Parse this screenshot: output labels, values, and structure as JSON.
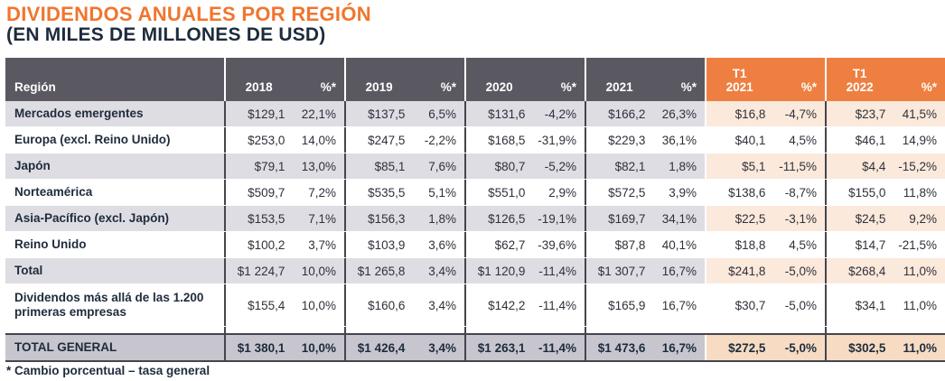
{
  "title": "DIVIDENDOS ANUALES POR REGIÓN",
  "subtitle": "(EN MILES DE MILLONES DE USD)",
  "footnote": "* Cambio porcentual – tasa general",
  "colors": {
    "accent_orange": "#EE7F41",
    "title_orange": "#F1752E",
    "header_gray": "#5A5962",
    "navy_text": "#1E2B3C",
    "row_shade_gray": "#DEDDE3",
    "row_shade_peach": "#FBE9DB",
    "total_row_gray": "#C7C6CE",
    "total_row_peach": "#F7DCC3",
    "dark_border": "#46454D"
  },
  "table": {
    "region_header": "Región",
    "pct_header": "%*",
    "groups": [
      {
        "label": "2018"
      },
      {
        "label": "2019"
      },
      {
        "label": "2020"
      },
      {
        "label": "2021"
      },
      {
        "label": "T1 2021",
        "line1": "T1",
        "line2": "2021",
        "quarter": true
      },
      {
        "label": "T1 2022",
        "line1": "T1",
        "line2": "2022",
        "quarter": true
      }
    ],
    "rows": [
      {
        "region": "Mercados emergentes",
        "shaded": true,
        "values": [
          "$129,1",
          "22,1%",
          "$137,5",
          "6,5%",
          "$131,6",
          "-4,2%",
          "$166,2",
          "26,3%",
          "$16,8",
          "-4,7%",
          "$23,7",
          "41,5%"
        ]
      },
      {
        "region": "Europa (excl. Reino Unido)",
        "shaded": false,
        "values": [
          "$253,0",
          "14,0%",
          "$247,5",
          "-2,2%",
          "$168,5",
          "-31,9%",
          "$229,3",
          "36,1%",
          "$40,1",
          "4,5%",
          "$46,1",
          "14,9%"
        ]
      },
      {
        "region": "Japón",
        "shaded": true,
        "values": [
          "$79,1",
          "13,0%",
          "$85,1",
          "7,6%",
          "$80,7",
          "-5,2%",
          "$82,1",
          "1,8%",
          "$5,1",
          "-11,5%",
          "$4,4",
          "-15,2%"
        ]
      },
      {
        "region": "Norteamérica",
        "shaded": false,
        "values": [
          "$509,7",
          "7,2%",
          "$535,5",
          "5,1%",
          "$551,0",
          "2,9%",
          "$572,5",
          "3,9%",
          "$138,6",
          "-8,7%",
          "$155,0",
          "11,8%"
        ]
      },
      {
        "region": "Asia-Pacífico (excl. Japón)",
        "shaded": true,
        "values": [
          "$153,5",
          "7,1%",
          "$156,3",
          "1,8%",
          "$126,5",
          "-19,1%",
          "$169,7",
          "34,1%",
          "$22,5",
          "-3,1%",
          "$24,5",
          "9,2%"
        ]
      },
      {
        "region": "Reino Unido",
        "shaded": false,
        "values": [
          "$100,2",
          "3,7%",
          "$103,9",
          "3,6%",
          "$62,7",
          "-39,6%",
          "$87,8",
          "40,1%",
          "$18,8",
          "4,5%",
          "$14,7",
          "-21,5%"
        ]
      },
      {
        "region": "Total",
        "shaded": true,
        "values": [
          "$1 224,7",
          "10,0%",
          "$1 265,8",
          "3,4%",
          "$1 120,9",
          "-11,4%",
          "$1 307,7",
          "16,7%",
          "$241,8",
          "-5,0%",
          "$268,4",
          "11,0%"
        ]
      },
      {
        "region": "Dividendos más allá de las 1.200 primeras empresas",
        "shaded": false,
        "tall": true,
        "values": [
          "$155,4",
          "10,0%",
          "$160,6",
          "3,4%",
          "$142,2",
          "-11,4%",
          "$165,9",
          "16,7%",
          "$30,7",
          "-5,0%",
          "$34,1",
          "11,0%"
        ]
      }
    ],
    "total_row": {
      "region": "TOTAL GENERAL",
      "values": [
        "$1 380,1",
        "10,0%",
        "$1 426,4",
        "3,4%",
        "$1 263,1",
        "-11,4%",
        "$1 473,6",
        "16,7%",
        "$272,5",
        "-5,0%",
        "$302,5",
        "11,0%"
      ]
    }
  },
  "chart_data": {
    "type": "table",
    "title": "DIVIDENDOS ANUALES POR REGIÓN (EN MILES DE MILLONES DE USD)",
    "columns": [
      "Región",
      "2018",
      "%*",
      "2019",
      "%*",
      "2020",
      "%*",
      "2021",
      "%*",
      "T1 2021",
      "%*",
      "T1 2022",
      "%*"
    ],
    "rows": [
      [
        "Mercados emergentes",
        "$129,1",
        "22,1%",
        "$137,5",
        "6,5%",
        "$131,6",
        "-4,2%",
        "$166,2",
        "26,3%",
        "$16,8",
        "-4,7%",
        "$23,7",
        "41,5%"
      ],
      [
        "Europa (excl. Reino Unido)",
        "$253,0",
        "14,0%",
        "$247,5",
        "-2,2%",
        "$168,5",
        "-31,9%",
        "$229,3",
        "36,1%",
        "$40,1",
        "4,5%",
        "$46,1",
        "14,9%"
      ],
      [
        "Japón",
        "$79,1",
        "13,0%",
        "$85,1",
        "7,6%",
        "$80,7",
        "-5,2%",
        "$82,1",
        "1,8%",
        "$5,1",
        "-11,5%",
        "$4,4",
        "-15,2%"
      ],
      [
        "Norteamérica",
        "$509,7",
        "7,2%",
        "$535,5",
        "5,1%",
        "$551,0",
        "2,9%",
        "$572,5",
        "3,9%",
        "$138,6",
        "-8,7%",
        "$155,0",
        "11,8%"
      ],
      [
        "Asia-Pacífico (excl. Japón)",
        "$153,5",
        "7,1%",
        "$156,3",
        "1,8%",
        "$126,5",
        "-19,1%",
        "$169,7",
        "34,1%",
        "$22,5",
        "-3,1%",
        "$24,5",
        "9,2%"
      ],
      [
        "Reino Unido",
        "$100,2",
        "3,7%",
        "$103,9",
        "3,6%",
        "$62,7",
        "-39,6%",
        "$87,8",
        "40,1%",
        "$18,8",
        "4,5%",
        "$14,7",
        "-21,5%"
      ],
      [
        "Total",
        "$1 224,7",
        "10,0%",
        "$1 265,8",
        "3,4%",
        "$1 120,9",
        "-11,4%",
        "$1 307,7",
        "16,7%",
        "$241,8",
        "-5,0%",
        "$268,4",
        "11,0%"
      ],
      [
        "Dividendos más allá de las 1.200 primeras empresas",
        "$155,4",
        "10,0%",
        "$160,6",
        "3,4%",
        "$142,2",
        "-11,4%",
        "$165,9",
        "16,7%",
        "$30,7",
        "-5,0%",
        "$34,1",
        "11,0%"
      ],
      [
        "TOTAL GENERAL",
        "$1 380,1",
        "10,0%",
        "$1 426,4",
        "3,4%",
        "$1 263,1",
        "-11,4%",
        "$1 473,6",
        "16,7%",
        "$272,5",
        "-5,0%",
        "$302,5",
        "11,0%"
      ]
    ],
    "footnote": "* Cambio porcentual – tasa general"
  }
}
